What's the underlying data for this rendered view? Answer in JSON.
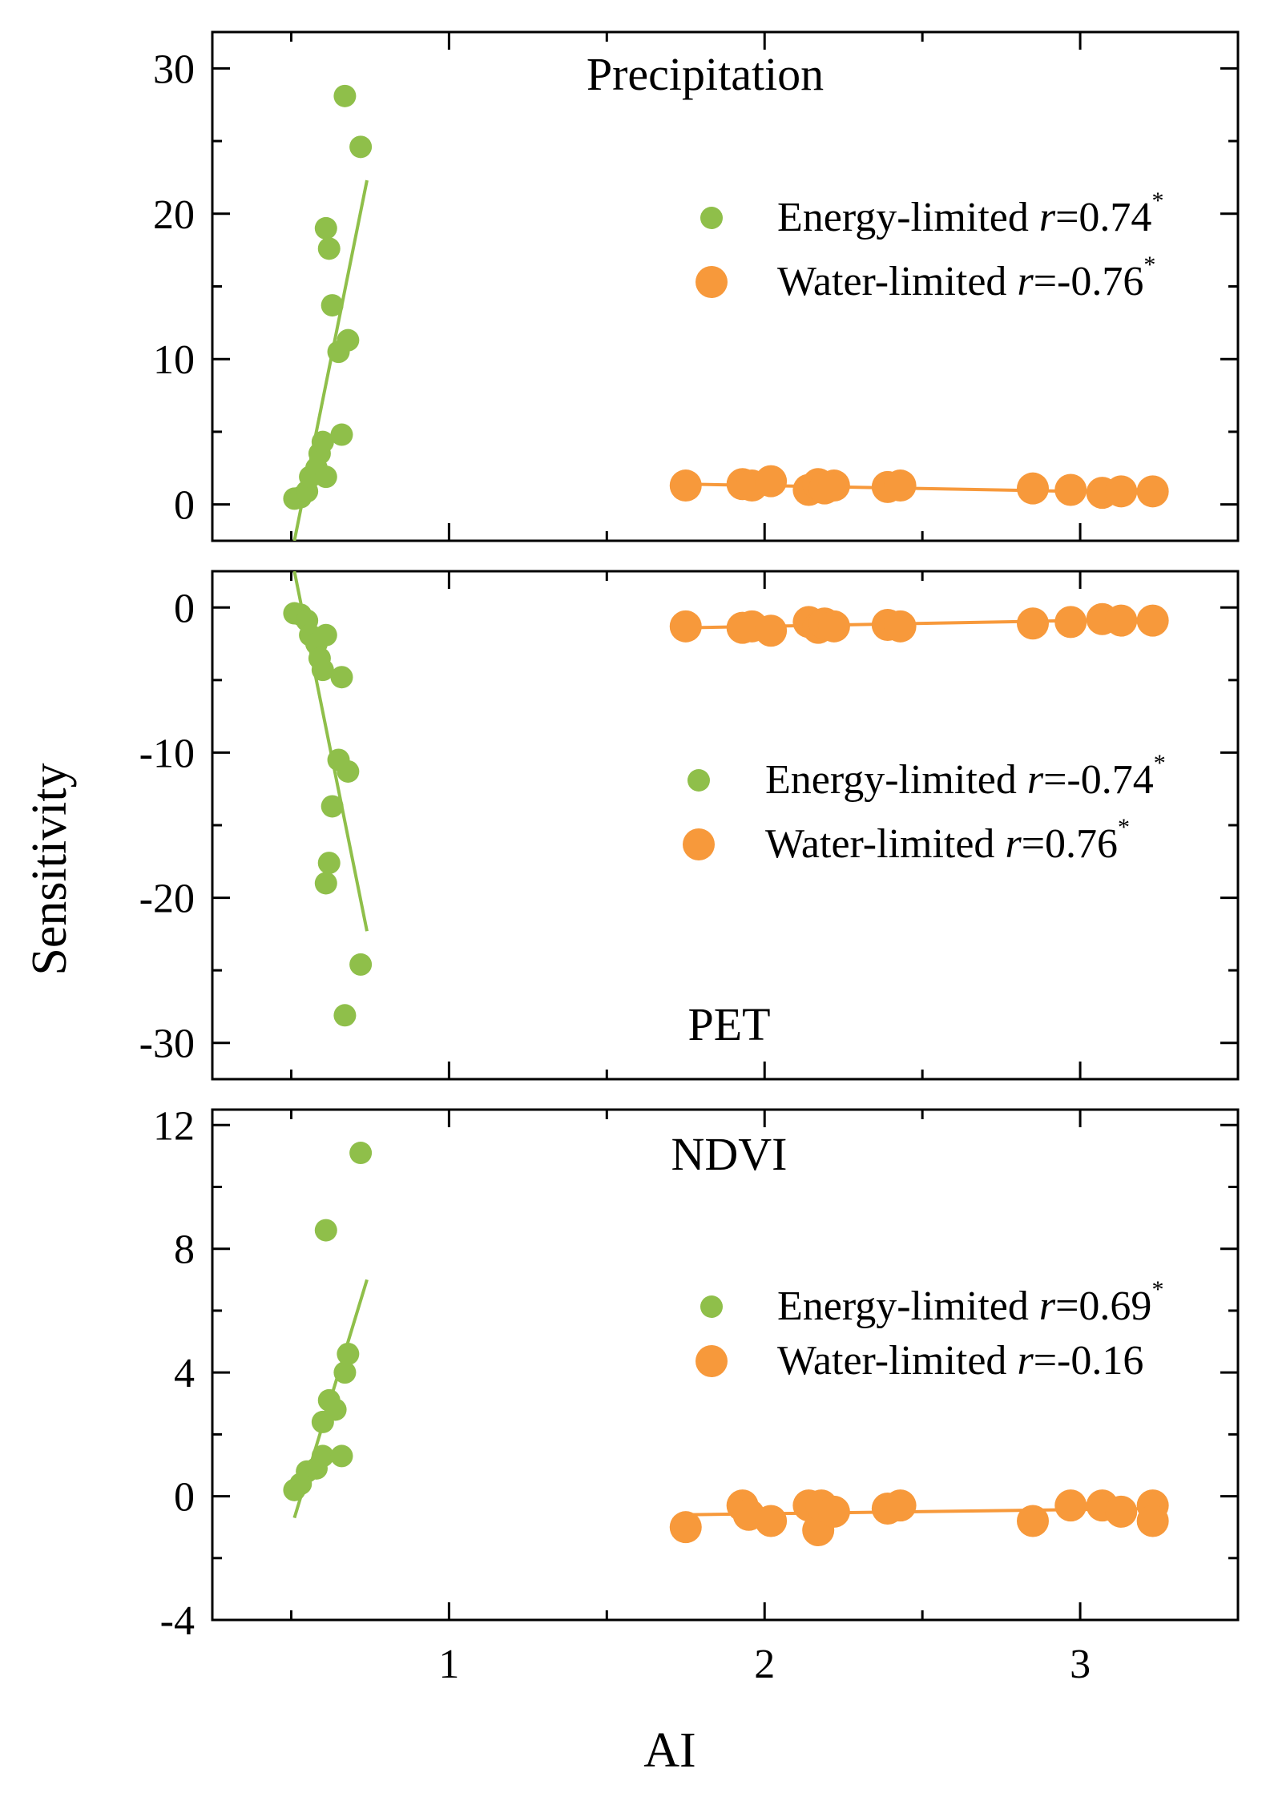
{
  "ylabel": "Sensitivity",
  "xlabel": "AI",
  "colors": {
    "energy": "#8fbf4a",
    "water": "#f7993b"
  },
  "chart_data": [
    {
      "type": "scatter",
      "title": "Precipitation",
      "xlim": [
        0.25,
        3.5
      ],
      "ylim": [
        -2.5,
        32.5
      ],
      "yticks": [
        0,
        10,
        20,
        30
      ],
      "xticks": [
        1,
        2,
        3
      ],
      "legend": [
        {
          "label": "Energy-limited ",
          "r": "r",
          "value": "=0.74",
          "sup": "*"
        },
        {
          "label": "Water-limited ",
          "r": "r",
          "value": "=-0.76",
          "sup": "*"
        }
      ],
      "series": [
        {
          "name": "Energy-limited",
          "points": [
            [
              0.51,
              0.4
            ],
            [
              0.53,
              0.5
            ],
            [
              0.55,
              0.9
            ],
            [
              0.56,
              1.9
            ],
            [
              0.58,
              2.5
            ],
            [
              0.59,
              3.5
            ],
            [
              0.6,
              4.3
            ],
            [
              0.61,
              1.9
            ],
            [
              0.61,
              19.0
            ],
            [
              0.62,
              17.6
            ],
            [
              0.63,
              13.7
            ],
            [
              0.65,
              10.5
            ],
            [
              0.66,
              4.8
            ],
            [
              0.67,
              28.1
            ],
            [
              0.68,
              11.3
            ],
            [
              0.72,
              24.6
            ]
          ],
          "fit": [
            [
              0.51,
              -2.5
            ],
            [
              0.74,
              22.3
            ]
          ]
        },
        {
          "name": "Water-limited",
          "points": [
            [
              1.75,
              1.3
            ],
            [
              1.93,
              1.4
            ],
            [
              1.96,
              1.3
            ],
            [
              2.02,
              1.6
            ],
            [
              2.14,
              1.0
            ],
            [
              2.17,
              1.4
            ],
            [
              2.19,
              1.1
            ],
            [
              2.22,
              1.3
            ],
            [
              2.39,
              1.2
            ],
            [
              2.43,
              1.3
            ],
            [
              2.85,
              1.1
            ],
            [
              2.97,
              1.0
            ],
            [
              3.07,
              0.8
            ],
            [
              3.13,
              0.9
            ],
            [
              3.23,
              0.9
            ]
          ],
          "fit": [
            [
              1.75,
              1.4
            ],
            [
              3.23,
              0.8
            ]
          ]
        }
      ]
    },
    {
      "type": "scatter",
      "title": "PET",
      "xlim": [
        0.25,
        3.5
      ],
      "ylim": [
        -32.5,
        2.5
      ],
      "yticks": [
        0,
        -10,
        -20,
        -30
      ],
      "xticks": [
        1,
        2,
        3
      ],
      "legend": [
        {
          "label": "Energy-limited ",
          "r": "r",
          "value": "=-0.74",
          "sup": "*"
        },
        {
          "label": "Water-limited ",
          "r": "r",
          "value": "=0.76",
          "sup": "*"
        }
      ],
      "series": [
        {
          "name": "Energy-limited",
          "points": [
            [
              0.51,
              -0.4
            ],
            [
              0.53,
              -0.5
            ],
            [
              0.55,
              -0.9
            ],
            [
              0.56,
              -1.9
            ],
            [
              0.58,
              -2.5
            ],
            [
              0.59,
              -3.5
            ],
            [
              0.6,
              -4.3
            ],
            [
              0.61,
              -1.9
            ],
            [
              0.61,
              -19.0
            ],
            [
              0.62,
              -17.6
            ],
            [
              0.63,
              -13.7
            ],
            [
              0.65,
              -10.5
            ],
            [
              0.66,
              -4.8
            ],
            [
              0.67,
              -28.1
            ],
            [
              0.68,
              -11.3
            ],
            [
              0.72,
              -24.6
            ]
          ],
          "fit": [
            [
              0.51,
              2.5
            ],
            [
              0.74,
              -22.3
            ]
          ]
        },
        {
          "name": "Water-limited",
          "points": [
            [
              1.75,
              -1.3
            ],
            [
              1.93,
              -1.4
            ],
            [
              1.96,
              -1.3
            ],
            [
              2.02,
              -1.6
            ],
            [
              2.14,
              -1.0
            ],
            [
              2.17,
              -1.4
            ],
            [
              2.19,
              -1.1
            ],
            [
              2.22,
              -1.3
            ],
            [
              2.39,
              -1.2
            ],
            [
              2.43,
              -1.3
            ],
            [
              2.85,
              -1.1
            ],
            [
              2.97,
              -1.0
            ],
            [
              3.07,
              -0.8
            ],
            [
              3.13,
              -0.9
            ],
            [
              3.23,
              -0.9
            ]
          ],
          "fit": [
            [
              1.75,
              -1.4
            ],
            [
              3.23,
              -0.8
            ]
          ]
        }
      ]
    },
    {
      "type": "scatter",
      "title": "NDVI",
      "xlim": [
        0.25,
        3.5
      ],
      "ylim": [
        -4,
        12.5
      ],
      "yticks": [
        12,
        8,
        4,
        0,
        -4
      ],
      "xticks": [
        1,
        2,
        3
      ],
      "legend": [
        {
          "label": "Energy-limited ",
          "r": "r",
          "value": "=0.69",
          "sup": "*"
        },
        {
          "label": "Water-limited ",
          "r": "r",
          "value": "=-0.16",
          "sup": ""
        }
      ],
      "series": [
        {
          "name": "Energy-limited",
          "points": [
            [
              0.51,
              0.2
            ],
            [
              0.53,
              0.4
            ],
            [
              0.55,
              0.8
            ],
            [
              0.58,
              0.9
            ],
            [
              0.6,
              1.3
            ],
            [
              0.6,
              2.4
            ],
            [
              0.61,
              8.6
            ],
            [
              0.62,
              3.1
            ],
            [
              0.64,
              2.8
            ],
            [
              0.66,
              1.3
            ],
            [
              0.67,
              4.0
            ],
            [
              0.68,
              4.6
            ],
            [
              0.72,
              11.1
            ]
          ],
          "fit": [
            [
              0.51,
              -0.7
            ],
            [
              0.74,
              7.0
            ]
          ]
        },
        {
          "name": "Water-limited",
          "points": [
            [
              1.75,
              -1.0
            ],
            [
              1.93,
              -0.3
            ],
            [
              1.95,
              -0.6
            ],
            [
              2.02,
              -0.8
            ],
            [
              2.14,
              -0.3
            ],
            [
              2.17,
              -1.1
            ],
            [
              2.18,
              -0.3
            ],
            [
              2.22,
              -0.5
            ],
            [
              2.39,
              -0.4
            ],
            [
              2.43,
              -0.3
            ],
            [
              2.85,
              -0.8
            ],
            [
              2.97,
              -0.3
            ],
            [
              3.07,
              -0.3
            ],
            [
              3.13,
              -0.5
            ],
            [
              3.23,
              -0.3
            ],
            [
              3.23,
              -0.8
            ]
          ],
          "fit": [
            [
              1.75,
              -0.6
            ],
            [
              3.23,
              -0.4
            ]
          ]
        }
      ]
    }
  ]
}
